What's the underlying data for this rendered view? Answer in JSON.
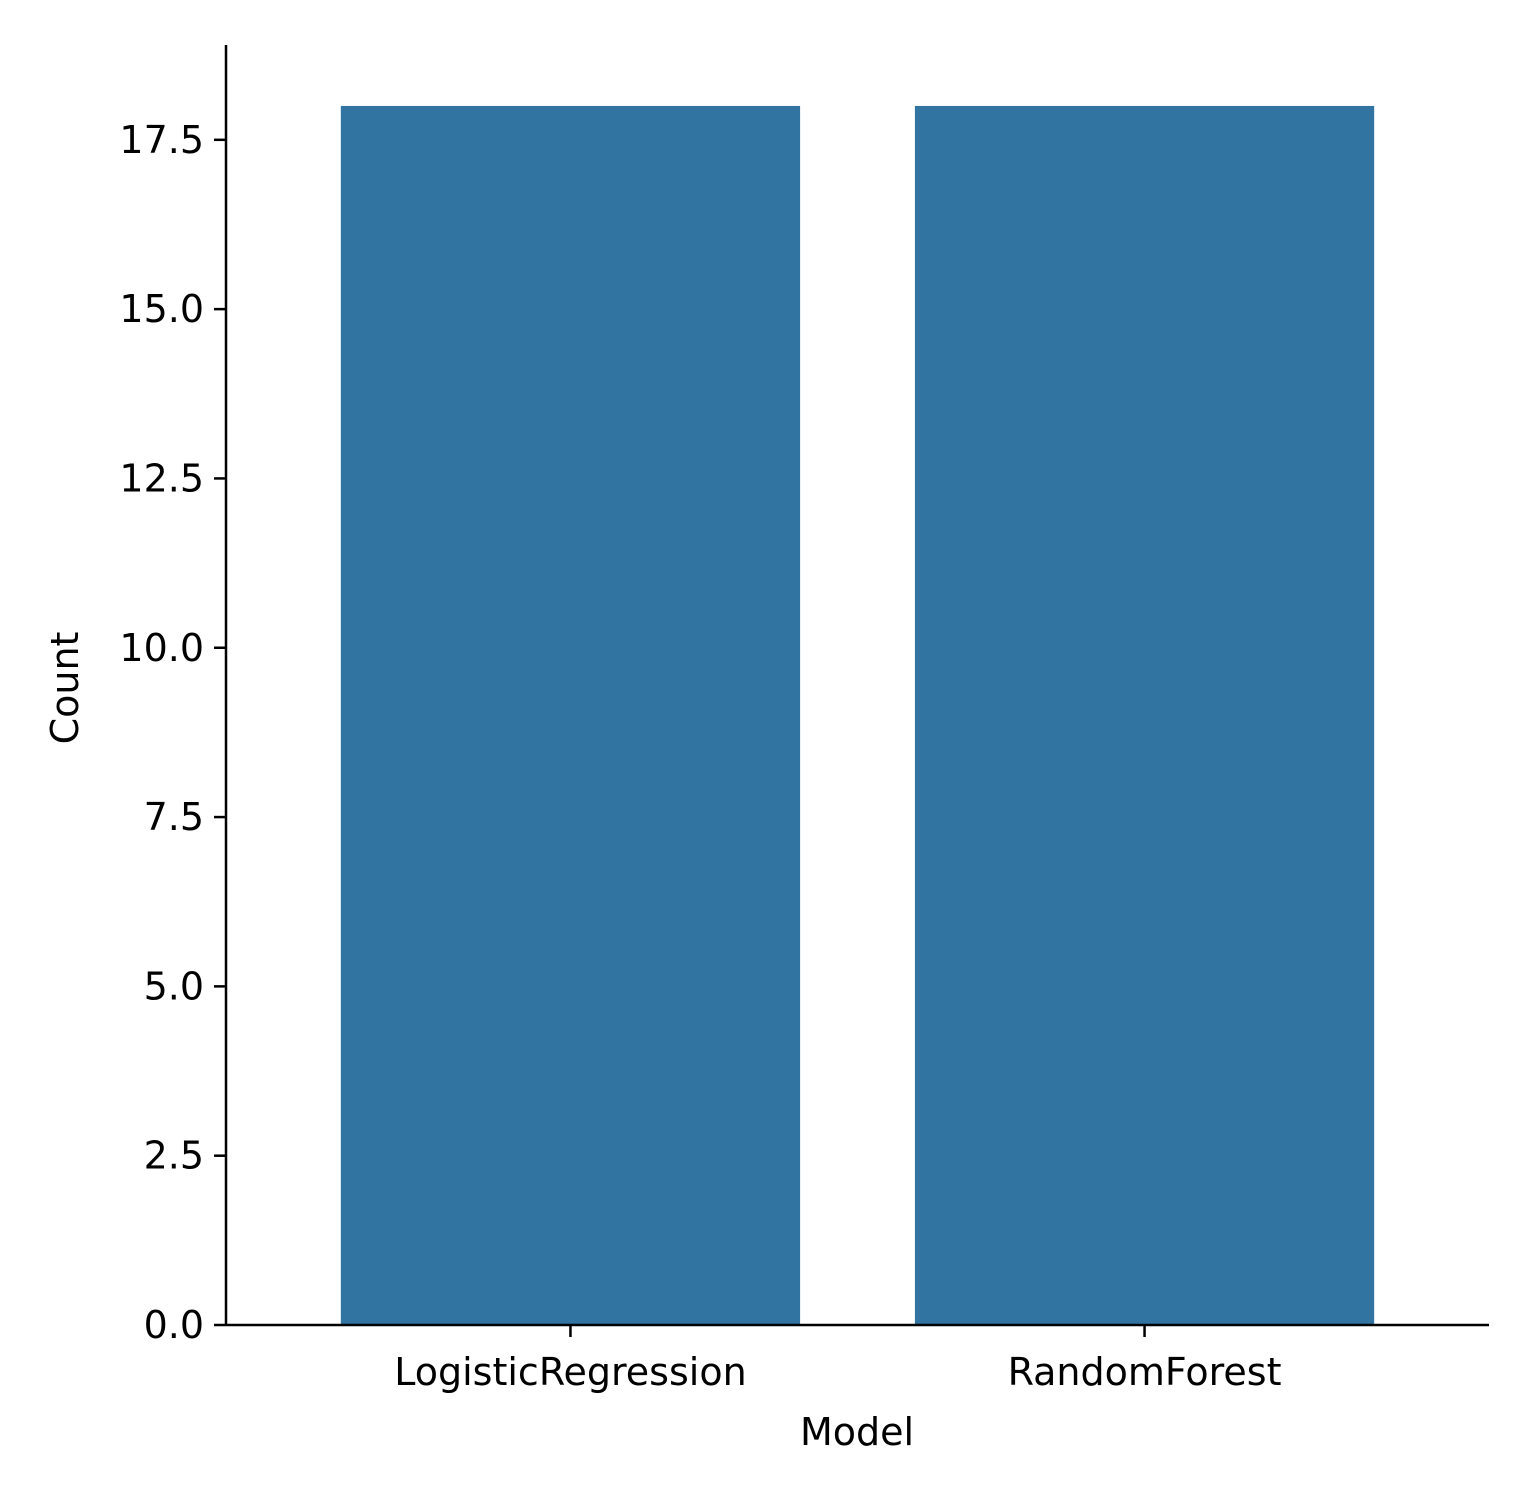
{
  "chart_data": {
    "type": "bar",
    "title": "",
    "xlabel": "Model",
    "ylabel": "Count",
    "categories": [
      "LogisticRegression",
      "RandomForest"
    ],
    "values": [
      18,
      18
    ],
    "ylim": [
      0,
      18.9
    ],
    "yticks": [
      0.0,
      2.5,
      5.0,
      7.5,
      10.0,
      12.5,
      15.0,
      17.5
    ],
    "ytick_labels": [
      "0.0",
      "2.5",
      "5.0",
      "7.5",
      "10.0",
      "12.5",
      "15.0",
      "17.5"
    ],
    "grid": false,
    "bar_color": "#3274a1"
  }
}
